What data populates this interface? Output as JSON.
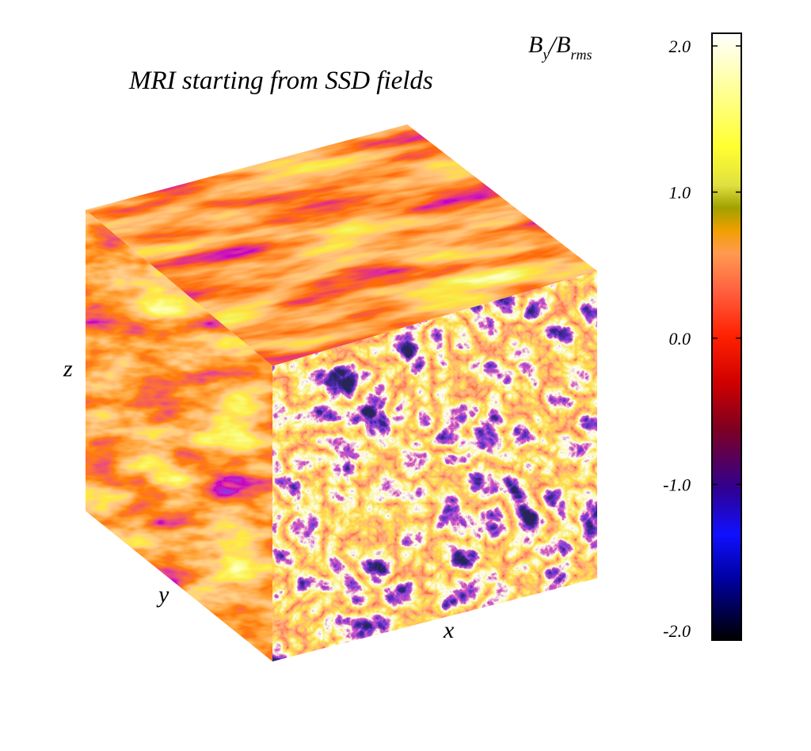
{
  "figure": {
    "title": "MRI starting from SSD fields",
    "axes": {
      "x": "x",
      "y": "y",
      "z": "z"
    }
  },
  "colorbar": {
    "label_main": "B",
    "label_sub1": "y",
    "label_mid": "/B",
    "label_sub2": "rms",
    "ticks": [
      {
        "value": 2.0,
        "label": "2.0"
      },
      {
        "value": 1.0,
        "label": "1.0"
      },
      {
        "value": 0.0,
        "label": "0.0"
      },
      {
        "value": -1.0,
        "label": "-1.0"
      },
      {
        "value": -2.0,
        "label": "-2.0"
      }
    ],
    "range": [
      -2.0,
      2.0
    ],
    "stops": [
      {
        "value": -2.0,
        "color": "#000000"
      },
      {
        "value": -1.6,
        "color": "#0000a0"
      },
      {
        "value": -1.3,
        "color": "#1010ff"
      },
      {
        "value": -1.0,
        "color": "#300090"
      },
      {
        "value": -0.6,
        "color": "#800020"
      },
      {
        "value": -0.3,
        "color": "#d00000"
      },
      {
        "value": 0.0,
        "color": "#ff2000"
      },
      {
        "value": 0.3,
        "color": "#ff6040"
      },
      {
        "value": 0.55,
        "color": "#ff9a50"
      },
      {
        "value": 0.7,
        "color": "#f0a000"
      },
      {
        "value": 0.85,
        "color": "#a0a000"
      },
      {
        "value": 1.0,
        "color": "#e0e040"
      },
      {
        "value": 1.25,
        "color": "#ffff30"
      },
      {
        "value": 1.6,
        "color": "#ffff90"
      },
      {
        "value": 2.0,
        "color": "#ffffff"
      }
    ]
  }
}
